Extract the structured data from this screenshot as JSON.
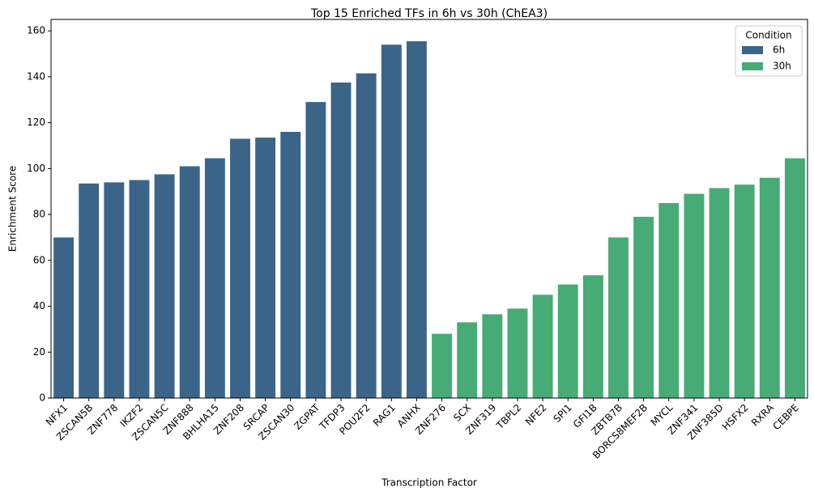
{
  "chart_data": {
    "type": "bar",
    "title": "Top 15 Enriched TFs in 6h vs 30h (ChEA3)",
    "x_label": "Transcription Factor",
    "y_label": "Enrichment Score",
    "categories": [
      "NFX1",
      "ZSCAN5B",
      "ZNF778",
      "IKZF2",
      "ZSCAN5C",
      "ZNF888",
      "BHLHA15",
      "ZNF208",
      "SRCAP",
      "ZSCAN30",
      "ZGPAT",
      "TFDP3",
      "POU2F2",
      "RAG1",
      "ANHX",
      "ZNF276",
      "SCX",
      "ZNF319",
      "TBPL2",
      "NFE2",
      "SPI1",
      "GFI1B",
      "ZBTB7B",
      "BORCS8MEF2B",
      "MYCL",
      "ZNF341",
      "ZNF385D",
      "HSFX2",
      "RXRA",
      "CEBPE"
    ],
    "series": [
      {
        "name": "6h",
        "color": "#3b6588",
        "values": [
          70,
          93.5,
          94,
          95,
          97.5,
          101,
          104.5,
          113,
          113.5,
          116,
          129,
          137.5,
          141.5,
          154,
          155.5,
          null,
          null,
          null,
          null,
          null,
          null,
          null,
          null,
          null,
          null,
          null,
          null,
          null,
          null,
          null
        ]
      },
      {
        "name": "30h",
        "color": "#46ab75",
        "values": [
          null,
          null,
          null,
          null,
          null,
          null,
          null,
          null,
          null,
          null,
          null,
          null,
          null,
          null,
          null,
          28,
          33,
          36.5,
          39,
          45,
          49.5,
          53.5,
          70,
          79,
          85,
          89,
          91.5,
          93,
          96,
          104.5
        ]
      }
    ],
    "ylim": [
      0,
      165
    ],
    "yticks": [
      0,
      20,
      40,
      60,
      80,
      100,
      120,
      140,
      160
    ],
    "legend": {
      "title": "Condition",
      "position": "upper right"
    }
  }
}
